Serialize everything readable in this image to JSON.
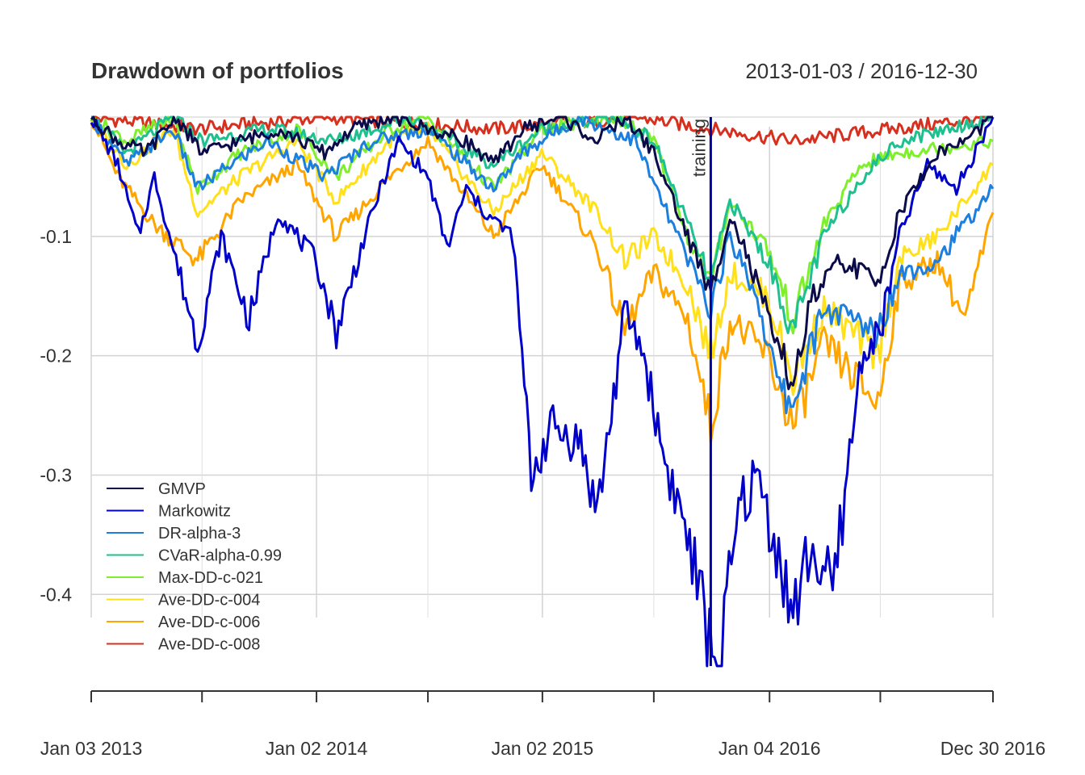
{
  "chart_data": {
    "type": "line",
    "title": "Drawdown of portfolios",
    "date_range": "2013-01-03 / 2016-12-30",
    "x_start": "2013-01-03",
    "x_end": "2016-12-30",
    "xticks": [
      {
        "date": "2013-01-03",
        "label": "Jan 03 2013"
      },
      {
        "date": "2014-01-02",
        "label": "Jan 02 2014"
      },
      {
        "date": "2015-01-02",
        "label": "Jan 02 2015"
      },
      {
        "date": "2016-01-04",
        "label": "Jan 04 2016"
      },
      {
        "date": "2016-12-30",
        "label": "Dec 30 2016"
      }
    ],
    "minor_tick_dates": [
      "2013-07-01",
      "2014-07-01",
      "2015-07-01",
      "2016-07-01"
    ],
    "ylim": [
      -0.46,
      0
    ],
    "yticks": [
      -0.1,
      -0.2,
      -0.3,
      -0.4
    ],
    "ytick_labels": [
      "-0.1",
      "-0.2",
      "-0.3",
      "-0.4"
    ],
    "grid": true,
    "legend_position": "bottom-left",
    "event": {
      "date": "2015-10-01",
      "label": "training"
    },
    "series": [
      {
        "name": "GMVP",
        "color": "#0b0b4a",
        "points": [
          [
            "2013-01-03",
            0
          ],
          [
            "2013-02-15",
            -0.02
          ],
          [
            "2013-04-01",
            -0.03
          ],
          [
            "2013-05-20",
            0
          ],
          [
            "2013-07-01",
            -0.03
          ],
          [
            "2013-09-01",
            -0.02
          ],
          [
            "2013-11-01",
            -0.01
          ],
          [
            "2014-01-15",
            -0.03
          ],
          [
            "2014-03-01",
            -0.01
          ],
          [
            "2014-05-01",
            0
          ],
          [
            "2014-07-01",
            -0.01
          ],
          [
            "2014-09-01",
            -0.02
          ],
          [
            "2014-10-15",
            -0.04
          ],
          [
            "2014-12-01",
            -0.01
          ],
          [
            "2015-02-01",
            0
          ],
          [
            "2015-04-01",
            -0.02
          ],
          [
            "2015-05-15",
            0
          ],
          [
            "2015-07-01",
            -0.03
          ],
          [
            "2015-08-25",
            -0.1
          ],
          [
            "2015-10-01",
            -0.15
          ],
          [
            "2015-11-01",
            -0.08
          ],
          [
            "2015-12-01",
            -0.12
          ],
          [
            "2016-01-20",
            -0.2
          ],
          [
            "2016-02-11",
            -0.22
          ],
          [
            "2016-03-15",
            -0.15
          ],
          [
            "2016-05-01",
            -0.12
          ],
          [
            "2016-06-27",
            -0.14
          ],
          [
            "2016-08-01",
            -0.08
          ],
          [
            "2016-10-01",
            -0.03
          ],
          [
            "2016-11-15",
            -0.02
          ],
          [
            "2016-12-30",
            0
          ]
        ]
      },
      {
        "name": "Markowitz",
        "color": "#0000c8",
        "points": [
          [
            "2013-01-03",
            0
          ],
          [
            "2013-02-15",
            -0.04
          ],
          [
            "2013-03-20",
            -0.1
          ],
          [
            "2013-04-15",
            -0.05
          ],
          [
            "2013-06-24",
            -0.19
          ],
          [
            "2013-08-01",
            -0.1
          ],
          [
            "2013-09-15",
            -0.17
          ],
          [
            "2013-11-01",
            -0.08
          ],
          [
            "2014-01-01",
            -0.12
          ],
          [
            "2014-02-03",
            -0.18
          ],
          [
            "2014-03-15",
            -0.11
          ],
          [
            "2014-04-15",
            -0.06
          ],
          [
            "2014-05-15",
            -0.02
          ],
          [
            "2014-07-01",
            -0.05
          ],
          [
            "2014-08-01",
            -0.11
          ],
          [
            "2014-09-01",
            -0.06
          ],
          [
            "2014-10-01",
            -0.08
          ],
          [
            "2014-11-15",
            -0.1
          ],
          [
            "2014-12-15",
            -0.3
          ],
          [
            "2015-01-15",
            -0.26
          ],
          [
            "2015-03-01",
            -0.27
          ],
          [
            "2015-04-01",
            -0.33
          ],
          [
            "2015-05-01",
            -0.22
          ],
          [
            "2015-05-15",
            -0.16
          ],
          [
            "2015-06-15",
            -0.2
          ],
          [
            "2015-07-15",
            -0.28
          ],
          [
            "2015-08-24",
            -0.35
          ],
          [
            "2015-09-29",
            -0.44
          ],
          [
            "2015-10-15",
            -0.46
          ],
          [
            "2015-11-15",
            -0.33
          ],
          [
            "2015-12-15",
            -0.3
          ],
          [
            "2016-01-15",
            -0.36
          ],
          [
            "2016-02-11",
            -0.42
          ],
          [
            "2016-03-10",
            -0.36
          ],
          [
            "2016-04-15",
            -0.4
          ],
          [
            "2016-06-01",
            -0.2
          ],
          [
            "2016-07-01",
            -0.18
          ],
          [
            "2016-08-01",
            -0.1
          ],
          [
            "2016-09-15",
            -0.04
          ],
          [
            "2016-11-01",
            -0.06
          ],
          [
            "2016-12-30",
            0
          ]
        ]
      },
      {
        "name": "DR-alpha-3",
        "color": "#1c7fe0",
        "points": [
          [
            "2013-01-03",
            0
          ],
          [
            "2013-03-01",
            -0.04
          ],
          [
            "2013-05-15",
            -0.01
          ],
          [
            "2013-06-24",
            -0.06
          ],
          [
            "2013-08-15",
            -0.04
          ],
          [
            "2013-10-15",
            -0.02
          ],
          [
            "2014-01-15",
            -0.05
          ],
          [
            "2014-04-01",
            -0.02
          ],
          [
            "2014-07-01",
            -0.01
          ],
          [
            "2014-10-15",
            -0.06
          ],
          [
            "2014-12-01",
            -0.03
          ],
          [
            "2015-03-01",
            0
          ],
          [
            "2015-06-01",
            -0.02
          ],
          [
            "2015-08-25",
            -0.12
          ],
          [
            "2015-10-01",
            -0.16
          ],
          [
            "2015-11-01",
            -0.1
          ],
          [
            "2015-12-15",
            -0.15
          ],
          [
            "2016-01-20",
            -0.23
          ],
          [
            "2016-02-11",
            -0.24
          ],
          [
            "2016-04-01",
            -0.16
          ],
          [
            "2016-06-27",
            -0.18
          ],
          [
            "2016-08-01",
            -0.13
          ],
          [
            "2016-10-01",
            -0.12
          ],
          [
            "2016-12-30",
            -0.06
          ]
        ]
      },
      {
        "name": "CVaR-alpha-0.99",
        "color": "#1fc08f",
        "points": [
          [
            "2013-01-03",
            0
          ],
          [
            "2013-03-01",
            -0.03
          ],
          [
            "2013-05-15",
            0
          ],
          [
            "2013-07-01",
            -0.02
          ],
          [
            "2013-10-15",
            -0.01
          ],
          [
            "2014-02-01",
            -0.02
          ],
          [
            "2014-06-01",
            0
          ],
          [
            "2014-10-15",
            -0.04
          ],
          [
            "2015-01-01",
            -0.01
          ],
          [
            "2015-05-01",
            0
          ],
          [
            "2015-07-01",
            -0.02
          ],
          [
            "2015-08-25",
            -0.09
          ],
          [
            "2015-10-01",
            -0.14
          ],
          [
            "2015-11-01",
            -0.07
          ],
          [
            "2016-01-01",
            -0.12
          ],
          [
            "2016-02-11",
            -0.18
          ],
          [
            "2016-04-01",
            -0.1
          ],
          [
            "2016-06-01",
            -0.05
          ],
          [
            "2016-08-01",
            -0.02
          ],
          [
            "2016-12-30",
            0
          ]
        ]
      },
      {
        "name": "Max-DD-c-021",
        "color": "#7fef2d",
        "points": [
          [
            "2013-01-03",
            0
          ],
          [
            "2013-03-01",
            -0.02
          ],
          [
            "2013-05-15",
            0
          ],
          [
            "2013-06-24",
            -0.06
          ],
          [
            "2013-09-01",
            -0.03
          ],
          [
            "2013-12-01",
            -0.01
          ],
          [
            "2014-02-03",
            -0.05
          ],
          [
            "2014-05-01",
            -0.01
          ],
          [
            "2014-07-01",
            0
          ],
          [
            "2014-10-15",
            -0.06
          ],
          [
            "2015-01-01",
            -0.01
          ],
          [
            "2015-05-01",
            0
          ],
          [
            "2015-07-01",
            -0.02
          ],
          [
            "2015-08-25",
            -0.1
          ],
          [
            "2015-10-01",
            -0.14
          ],
          [
            "2015-11-01",
            -0.07
          ],
          [
            "2016-01-01",
            -0.11
          ],
          [
            "2016-02-11",
            -0.17
          ],
          [
            "2016-04-01",
            -0.09
          ],
          [
            "2016-06-01",
            -0.04
          ],
          [
            "2016-08-01",
            -0.03
          ],
          [
            "2016-12-30",
            -0.02
          ]
        ]
      },
      {
        "name": "Ave-DD-c-004",
        "color": "#ffe01a",
        "points": [
          [
            "2013-01-03",
            0
          ],
          [
            "2013-03-01",
            -0.04
          ],
          [
            "2013-05-15",
            -0.01
          ],
          [
            "2013-06-24",
            -0.08
          ],
          [
            "2013-09-01",
            -0.05
          ],
          [
            "2013-12-01",
            -0.02
          ],
          [
            "2014-02-03",
            -0.07
          ],
          [
            "2014-05-01",
            -0.02
          ],
          [
            "2014-07-01",
            -0.01
          ],
          [
            "2014-10-15",
            -0.08
          ],
          [
            "2015-01-01",
            -0.03
          ],
          [
            "2015-04-01",
            -0.08
          ],
          [
            "2015-05-15",
            -0.12
          ],
          [
            "2015-07-01",
            -0.1
          ],
          [
            "2015-08-25",
            -0.14
          ],
          [
            "2015-10-01",
            -0.2
          ],
          [
            "2015-11-01",
            -0.13
          ],
          [
            "2016-01-01",
            -0.15
          ],
          [
            "2016-02-11",
            -0.22
          ],
          [
            "2016-04-01",
            -0.16
          ],
          [
            "2016-06-27",
            -0.2
          ],
          [
            "2016-08-01",
            -0.12
          ],
          [
            "2016-10-01",
            -0.1
          ],
          [
            "2016-12-30",
            -0.04
          ]
        ]
      },
      {
        "name": "Ave-DD-c-006",
        "color": "#ffa500",
        "points": [
          [
            "2013-01-03",
            0
          ],
          [
            "2013-02-15",
            -0.05
          ],
          [
            "2013-04-15",
            -0.09
          ],
          [
            "2013-06-24",
            -0.12
          ],
          [
            "2013-09-01",
            -0.07
          ],
          [
            "2013-12-01",
            -0.04
          ],
          [
            "2014-02-03",
            -0.1
          ],
          [
            "2014-05-01",
            -0.05
          ],
          [
            "2014-07-01",
            -0.02
          ],
          [
            "2014-10-15",
            -0.1
          ],
          [
            "2015-01-01",
            -0.04
          ],
          [
            "2015-04-01",
            -0.11
          ],
          [
            "2015-05-15",
            -0.18
          ],
          [
            "2015-07-01",
            -0.13
          ],
          [
            "2015-08-25",
            -0.17
          ],
          [
            "2015-10-01",
            -0.26
          ],
          [
            "2015-11-01",
            -0.17
          ],
          [
            "2016-01-01",
            -0.2
          ],
          [
            "2016-02-11",
            -0.26
          ],
          [
            "2016-04-01",
            -0.19
          ],
          [
            "2016-06-27",
            -0.24
          ],
          [
            "2016-08-01",
            -0.14
          ],
          [
            "2016-10-01",
            -0.12
          ],
          [
            "2016-11-15",
            -0.17
          ],
          [
            "2016-12-30",
            -0.08
          ]
        ]
      },
      {
        "name": "Ave-DD-c-008",
        "color": "#d7301f",
        "points": [
          [
            "2013-01-03",
            0
          ],
          [
            "2013-06-24",
            -0.01
          ],
          [
            "2014-01-15",
            0
          ],
          [
            "2014-10-15",
            -0.01
          ],
          [
            "2015-06-01",
            0
          ],
          [
            "2015-10-01",
            -0.01
          ],
          [
            "2016-02-11",
            -0.02
          ],
          [
            "2016-12-30",
            0
          ]
        ]
      }
    ]
  }
}
